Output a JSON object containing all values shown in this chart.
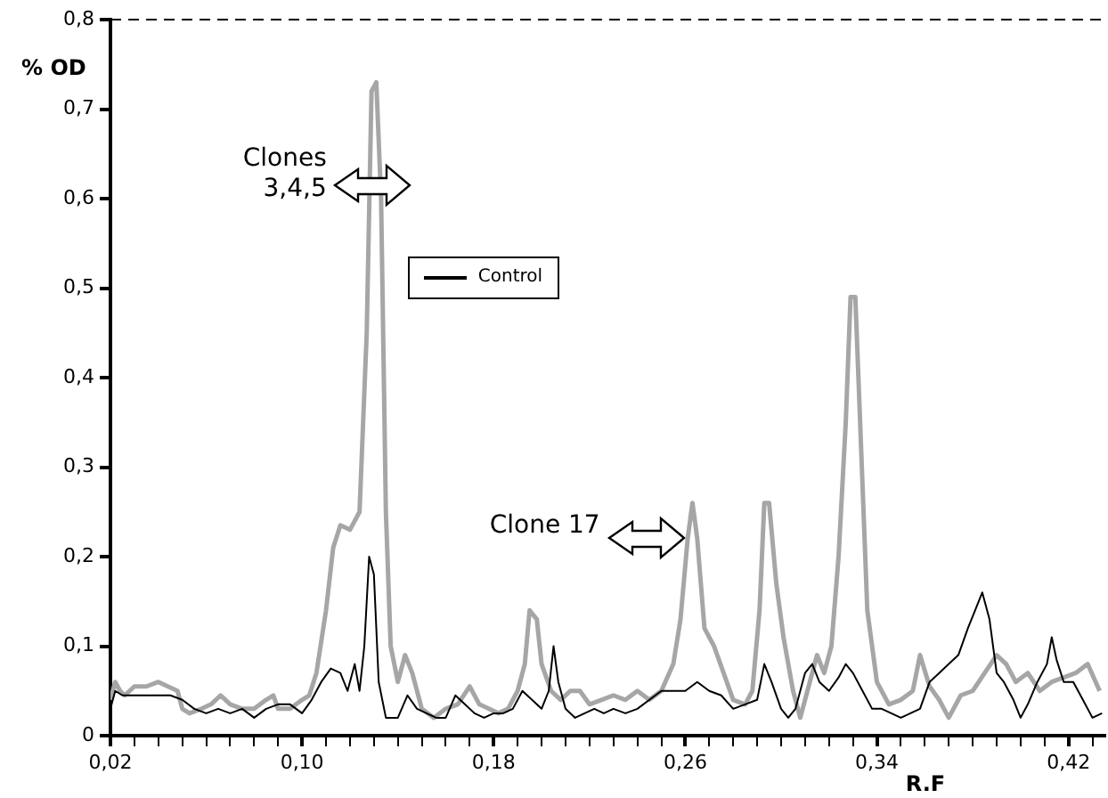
{
  "chart_data": {
    "type": "line",
    "xlabel": "R.F",
    "ylabel": "% OD",
    "legend": "top left",
    "grid": false,
    "marker": "none",
    "line_style": "solid",
    "xlim": [
      0.02,
      0.435
    ],
    "ylim": [
      0,
      0.8
    ],
    "xticks": [
      {
        "value": 0.02,
        "label": "0,02"
      },
      {
        "value": 0.03,
        "label": null
      },
      {
        "value": 0.04,
        "label": null
      },
      {
        "value": 0.05,
        "label": null
      },
      {
        "value": 0.06,
        "label": null
      },
      {
        "value": 0.07,
        "label": null
      },
      {
        "value": 0.08,
        "label": null
      },
      {
        "value": 0.09,
        "label": null
      },
      {
        "value": 0.1,
        "label": "0,10"
      },
      {
        "value": 0.11,
        "label": null
      },
      {
        "value": 0.12,
        "label": null
      },
      {
        "value": 0.13,
        "label": null
      },
      {
        "value": 0.14,
        "label": null
      },
      {
        "value": 0.15,
        "label": null
      },
      {
        "value": 0.16,
        "label": null
      },
      {
        "value": 0.17,
        "label": null
      },
      {
        "value": 0.18,
        "label": "0,18"
      },
      {
        "value": 0.19,
        "label": null
      },
      {
        "value": 0.2,
        "label": null
      },
      {
        "value": 0.21,
        "label": null
      },
      {
        "value": 0.22,
        "label": null
      },
      {
        "value": 0.23,
        "label": null
      },
      {
        "value": 0.24,
        "label": null
      },
      {
        "value": 0.25,
        "label": null
      },
      {
        "value": 0.26,
        "label": "0,26"
      },
      {
        "value": 0.27,
        "label": null
      },
      {
        "value": 0.28,
        "label": null
      },
      {
        "value": 0.29,
        "label": null
      },
      {
        "value": 0.3,
        "label": null
      },
      {
        "value": 0.31,
        "label": null
      },
      {
        "value": 0.32,
        "label": null
      },
      {
        "value": 0.33,
        "label": null
      },
      {
        "value": 0.34,
        "label": "0,34"
      },
      {
        "value": 0.35,
        "label": null
      },
      {
        "value": 0.36,
        "label": null
      },
      {
        "value": 0.37,
        "label": null
      },
      {
        "value": 0.38,
        "label": null
      },
      {
        "value": 0.39,
        "label": null
      },
      {
        "value": 0.4,
        "label": null
      },
      {
        "value": 0.41,
        "label": null
      },
      {
        "value": 0.42,
        "label": "0,42"
      },
      {
        "value": 0.43,
        "label": null
      }
    ],
    "yticks": [
      0,
      {
        "value": 0.1,
        "label": "0,1"
      },
      {
        "value": 0.2,
        "label": "0,2"
      },
      {
        "value": 0.3,
        "label": "0,3"
      },
      {
        "value": 0.4,
        "label": "0,4"
      },
      {
        "value": 0.5,
        "label": "0,5"
      },
      {
        "value": 0.6,
        "label": "0,6"
      },
      {
        "value": 0.7,
        "label": "0,7"
      },
      {
        "value": 0.8,
        "label": "0,8"
      }
    ],
    "ref_lines": [
      {
        "axis": "y",
        "value": 0.8,
        "color": "#000000",
        "line_style": "dashed"
      }
    ],
    "annotations": [
      "Clones\n3,4,5",
      "Clone 17"
    ],
    "series": [
      {
        "name": "Control",
        "color": "#000000",
        "x": [
          0.02,
          0.022,
          0.025,
          0.03,
          0.035,
          0.04,
          0.045,
          0.05,
          0.055,
          0.06,
          0.065,
          0.07,
          0.075,
          0.08,
          0.085,
          0.09,
          0.095,
          0.1,
          0.104,
          0.108,
          0.112,
          0.116,
          0.119,
          0.122,
          0.124,
          0.126,
          0.128,
          0.13,
          0.132,
          0.135,
          0.14,
          0.144,
          0.148,
          0.152,
          0.156,
          0.16,
          0.164,
          0.168,
          0.172,
          0.176,
          0.18,
          0.184,
          0.188,
          0.192,
          0.196,
          0.2,
          0.203,
          0.205,
          0.207,
          0.21,
          0.214,
          0.218,
          0.222,
          0.226,
          0.23,
          0.235,
          0.24,
          0.245,
          0.25,
          0.255,
          0.26,
          0.265,
          0.27,
          0.275,
          0.28,
          0.285,
          0.29,
          0.293,
          0.296,
          0.3,
          0.303,
          0.306,
          0.31,
          0.313,
          0.316,
          0.32,
          0.324,
          0.327,
          0.33,
          0.334,
          0.338,
          0.342,
          0.346,
          0.35,
          0.354,
          0.358,
          0.362,
          0.366,
          0.37,
          0.374,
          0.378,
          0.381,
          0.384,
          0.387,
          0.39,
          0.393,
          0.397,
          0.4,
          0.403,
          0.407,
          0.411,
          0.413,
          0.415,
          0.418,
          0.422,
          0.426,
          0.43,
          0.434
        ],
        "values": [
          0.03,
          0.05,
          0.045,
          0.045,
          0.045,
          0.045,
          0.045,
          0.04,
          0.03,
          0.025,
          0.03,
          0.025,
          0.03,
          0.02,
          0.03,
          0.035,
          0.035,
          0.025,
          0.04,
          0.06,
          0.075,
          0.07,
          0.05,
          0.08,
          0.05,
          0.1,
          0.2,
          0.18,
          0.06,
          0.02,
          0.02,
          0.045,
          0.03,
          0.025,
          0.02,
          0.02,
          0.045,
          0.035,
          0.025,
          0.02,
          0.025,
          0.025,
          0.03,
          0.05,
          0.04,
          0.03,
          0.05,
          0.1,
          0.06,
          0.03,
          0.02,
          0.025,
          0.03,
          0.025,
          0.03,
          0.025,
          0.03,
          0.04,
          0.05,
          0.05,
          0.05,
          0.06,
          0.05,
          0.045,
          0.03,
          0.035,
          0.04,
          0.08,
          0.06,
          0.03,
          0.02,
          0.03,
          0.07,
          0.08,
          0.06,
          0.05,
          0.065,
          0.08,
          0.07,
          0.05,
          0.03,
          0.03,
          0.025,
          0.02,
          0.025,
          0.03,
          0.06,
          0.07,
          0.08,
          0.09,
          0.12,
          0.14,
          0.16,
          0.13,
          0.07,
          0.06,
          0.04,
          0.02,
          0.035,
          0.06,
          0.08,
          0.11,
          0.085,
          0.06,
          0.06,
          0.04,
          0.02,
          0.025
        ]
      },
      {
        "color": "#a6a6a6",
        "x": [
          0.02,
          0.022,
          0.024,
          0.026,
          0.03,
          0.035,
          0.04,
          0.044,
          0.048,
          0.05,
          0.053,
          0.058,
          0.062,
          0.066,
          0.07,
          0.075,
          0.08,
          0.085,
          0.088,
          0.09,
          0.095,
          0.1,
          0.103,
          0.106,
          0.11,
          0.113,
          0.116,
          0.12,
          0.124,
          0.127,
          0.129,
          0.131,
          0.133,
          0.135,
          0.137,
          0.14,
          0.143,
          0.146,
          0.15,
          0.155,
          0.16,
          0.165,
          0.17,
          0.174,
          0.178,
          0.182,
          0.186,
          0.19,
          0.193,
          0.195,
          0.198,
          0.2,
          0.204,
          0.208,
          0.212,
          0.216,
          0.22,
          0.225,
          0.23,
          0.235,
          0.24,
          0.245,
          0.25,
          0.255,
          0.258,
          0.261,
          0.263,
          0.265,
          0.268,
          0.272,
          0.276,
          0.28,
          0.285,
          0.288,
          0.291,
          0.293,
          0.295,
          0.298,
          0.301,
          0.305,
          0.308,
          0.311,
          0.315,
          0.318,
          0.321,
          0.324,
          0.327,
          0.329,
          0.331,
          0.333,
          0.336,
          0.34,
          0.345,
          0.35,
          0.355,
          0.358,
          0.362,
          0.366,
          0.37,
          0.375,
          0.38,
          0.385,
          0.39,
          0.394,
          0.398,
          0.403,
          0.408,
          0.413,
          0.418,
          0.423,
          0.428,
          0.433
        ],
        "values": [
          0.04,
          0.06,
          0.05,
          0.045,
          0.055,
          0.055,
          0.06,
          0.055,
          0.05,
          0.03,
          0.025,
          0.03,
          0.035,
          0.045,
          0.035,
          0.03,
          0.03,
          0.04,
          0.045,
          0.03,
          0.03,
          0.04,
          0.045,
          0.07,
          0.14,
          0.21,
          0.235,
          0.23,
          0.25,
          0.45,
          0.72,
          0.73,
          0.6,
          0.25,
          0.1,
          0.06,
          0.09,
          0.07,
          0.03,
          0.02,
          0.03,
          0.035,
          0.055,
          0.035,
          0.03,
          0.025,
          0.03,
          0.05,
          0.08,
          0.14,
          0.13,
          0.08,
          0.05,
          0.04,
          0.05,
          0.05,
          0.035,
          0.04,
          0.045,
          0.04,
          0.05,
          0.04,
          0.05,
          0.08,
          0.13,
          0.22,
          0.26,
          0.22,
          0.12,
          0.1,
          0.07,
          0.04,
          0.035,
          0.05,
          0.14,
          0.26,
          0.26,
          0.17,
          0.11,
          0.05,
          0.02,
          0.05,
          0.09,
          0.07,
          0.1,
          0.2,
          0.35,
          0.49,
          0.49,
          0.35,
          0.14,
          0.06,
          0.035,
          0.04,
          0.05,
          0.09,
          0.055,
          0.04,
          0.02,
          0.045,
          0.05,
          0.07,
          0.09,
          0.08,
          0.06,
          0.07,
          0.05,
          0.06,
          0.065,
          0.07,
          0.08,
          0.05
        ]
      }
    ]
  }
}
